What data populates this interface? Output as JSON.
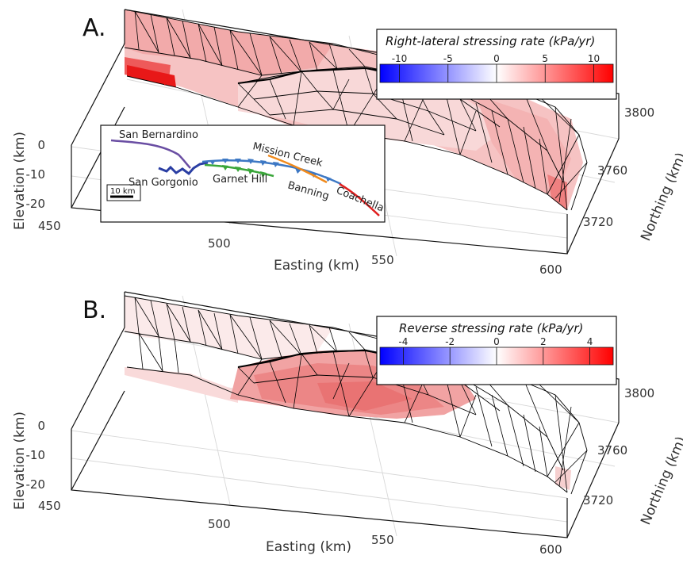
{
  "chart_data": [
    {
      "type": "heatmap",
      "panel_label": "A.",
      "colorbar": {
        "title": "Right-lateral stressing rate (kPa/yr)",
        "range": [
          -12,
          12
        ],
        "ticks": [
          "-10",
          "-5",
          "0",
          "5",
          "10"
        ],
        "tick_values": [
          -10,
          -5,
          0,
          5,
          10
        ],
        "colormap": [
          "#0000ff",
          "#ffffff",
          "#ff0000"
        ]
      },
      "xlabel": "Easting (km)",
      "ylabel": "Northing (km)",
      "zlabel": "Elevation (km)",
      "xlim": [
        450,
        600
      ],
      "ylim": [
        3720,
        3800
      ],
      "zlim": [
        -20,
        0
      ],
      "xticks": [
        "450",
        "500",
        "550",
        "600"
      ],
      "yticks": [
        "3720",
        "3760",
        "3800"
      ],
      "zticks": [
        "0",
        "-10",
        "-20"
      ],
      "inset_map": {
        "scale_bar": "10 km",
        "faults": [
          {
            "name": "San Bernardino",
            "color": "#6a4ea3"
          },
          {
            "name": "San Gorgonio",
            "color": "#2a3ea3"
          },
          {
            "name": "Garnet Hill",
            "color": "#3aa63a"
          },
          {
            "name": "Mission Creek",
            "color": "#f08a1c"
          },
          {
            "name": "Banning",
            "color": "#3d78c4"
          },
          {
            "name": "Coachella",
            "color": "#e02020"
          }
        ]
      }
    },
    {
      "type": "heatmap",
      "panel_label": "B.",
      "colorbar": {
        "title": "Reverse stressing rate (kPa/yr)",
        "range": [
          -5,
          5
        ],
        "ticks": [
          "-4",
          "-2",
          "0",
          "2",
          "4"
        ],
        "tick_values": [
          -4,
          -2,
          0,
          2,
          4
        ],
        "colormap": [
          "#0000ff",
          "#ffffff",
          "#ff0000"
        ]
      },
      "xlabel": "Easting (km)",
      "ylabel": "Northing (km)",
      "zlabel": "Elevation (km)",
      "xlim": [
        450,
        600
      ],
      "ylim": [
        3720,
        3800
      ],
      "zlim": [
        -20,
        0
      ],
      "xticks": [
        "450",
        "500",
        "550",
        "600"
      ],
      "yticks": [
        "3720",
        "3760",
        "3800"
      ],
      "zticks": [
        "0",
        "-10",
        "-20"
      ]
    }
  ]
}
